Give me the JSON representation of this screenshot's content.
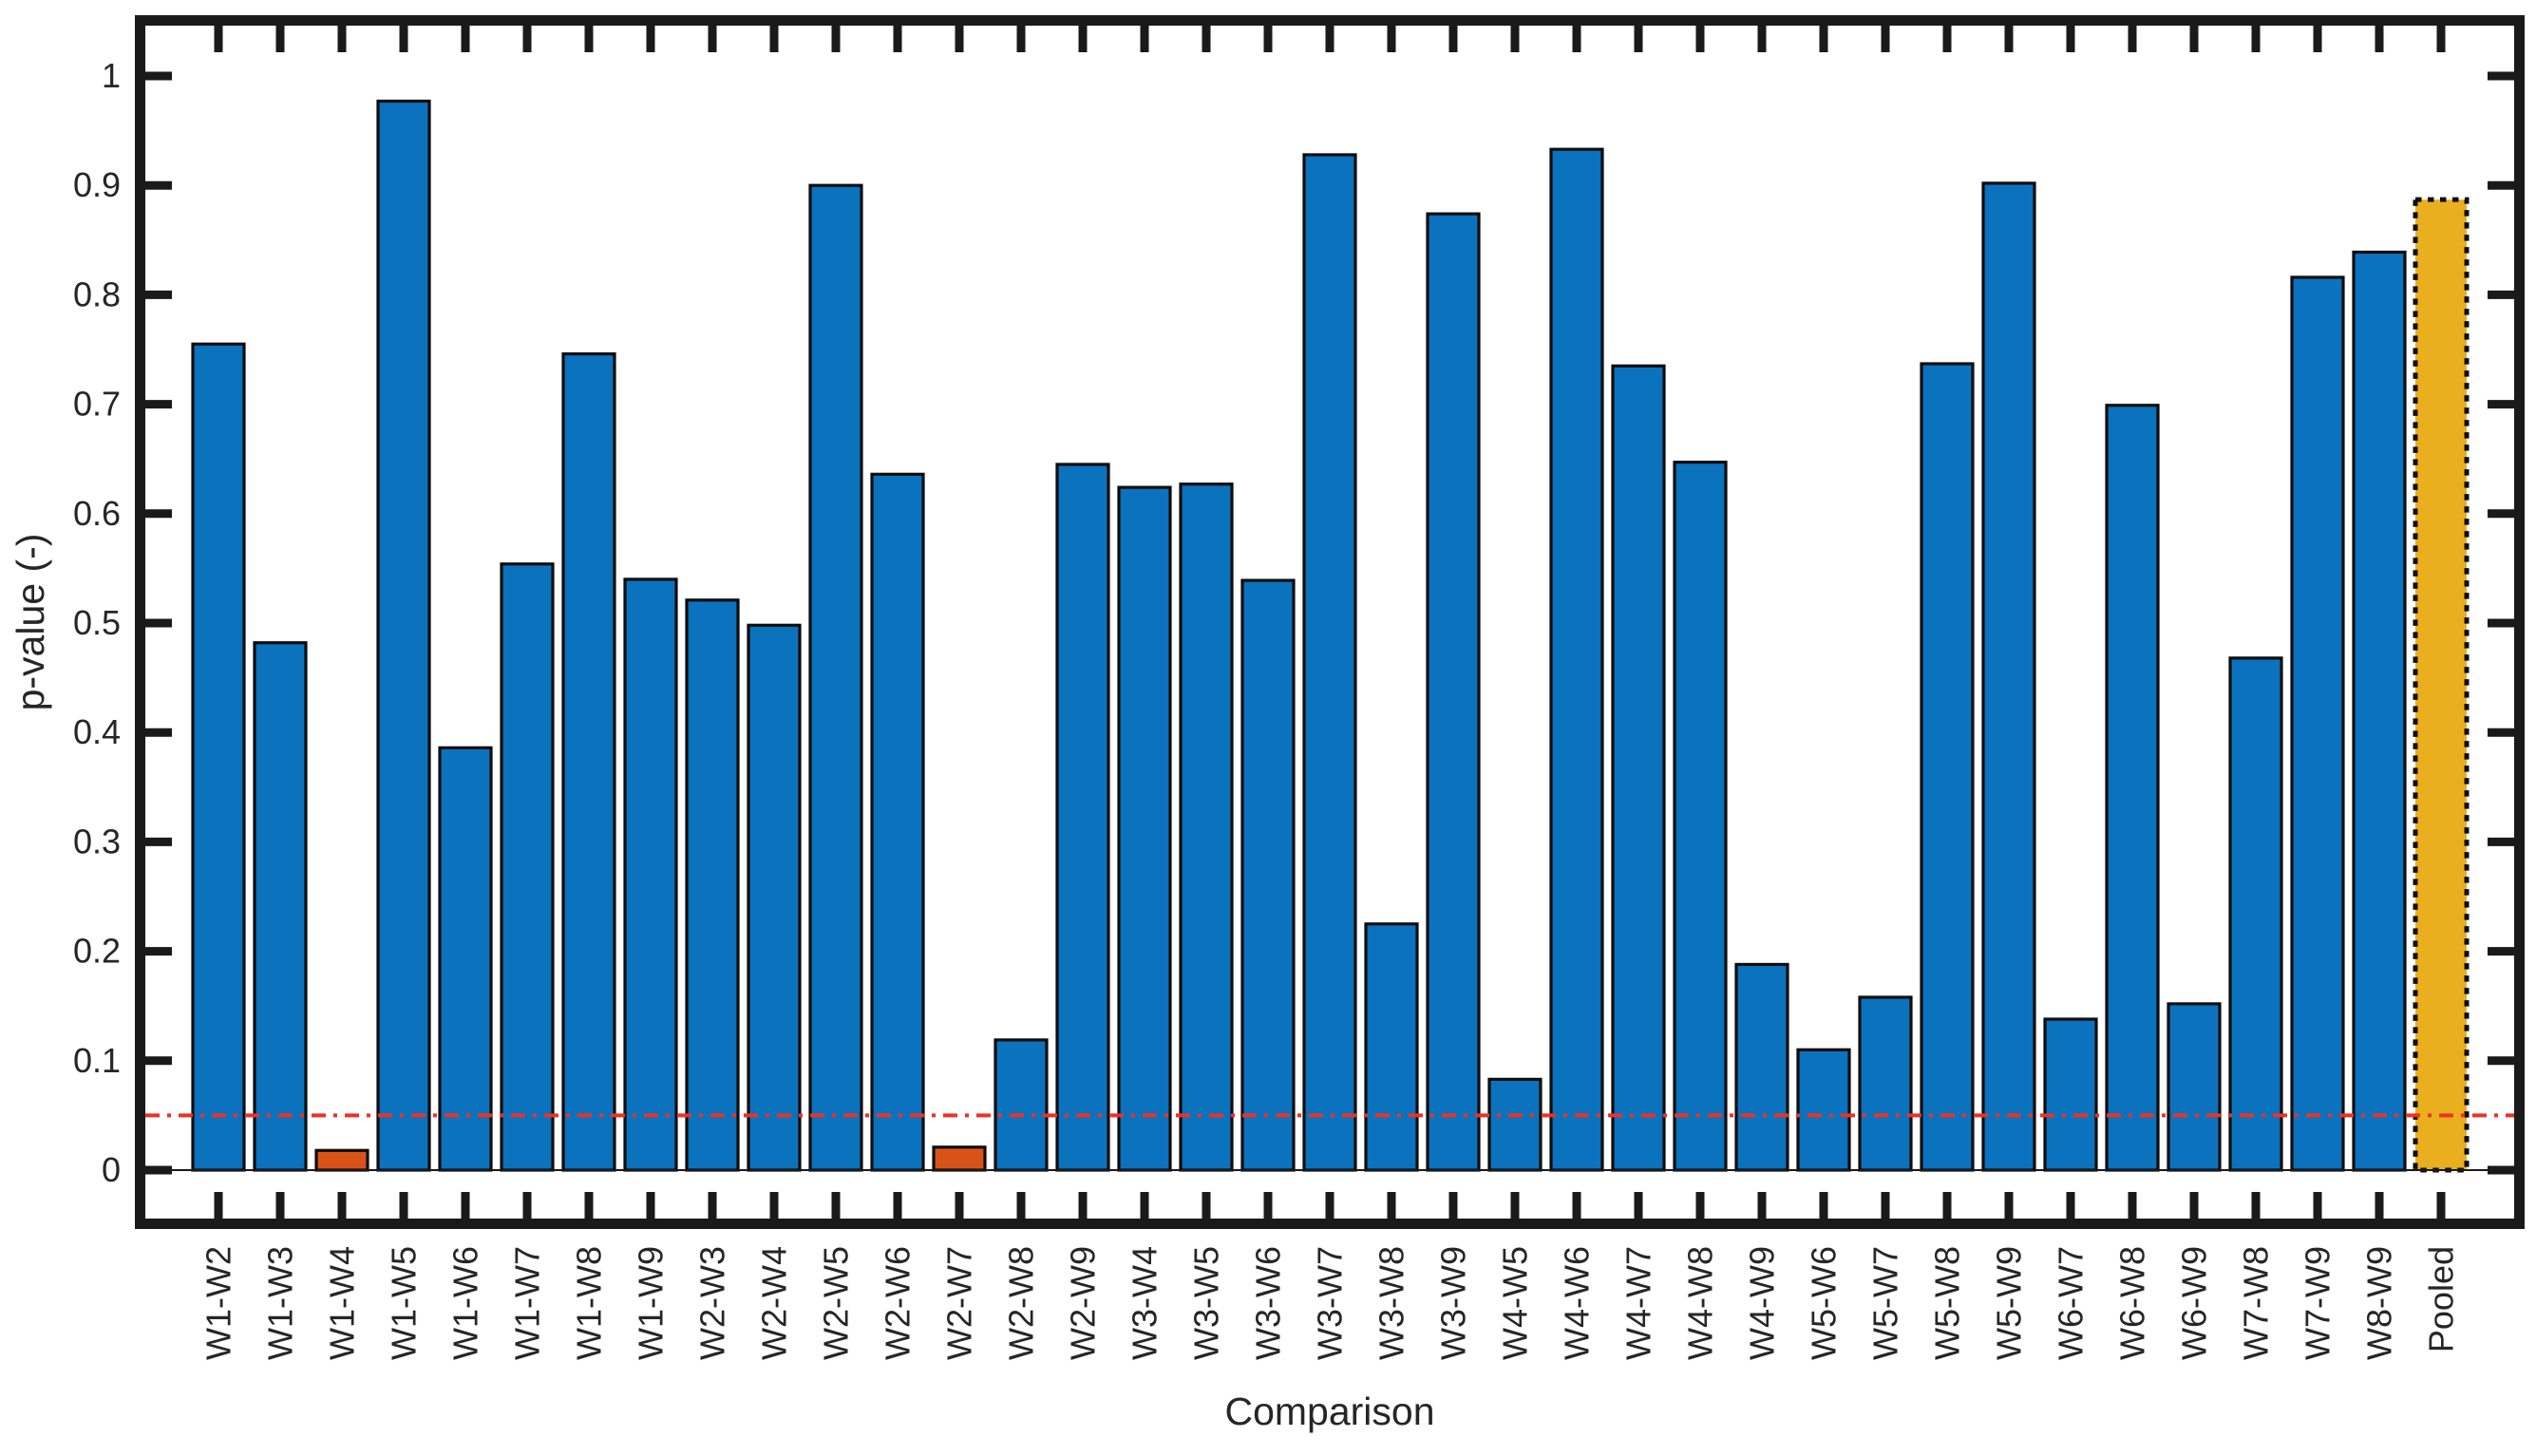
{
  "chart_data": {
    "type": "bar",
    "title": "",
    "xlabel": "Comparison",
    "ylabel": "p-value (-)",
    "ylim": [
      -0.05,
      1.05
    ],
    "yticks": [
      "0",
      "0.1",
      "0.2",
      "0.3",
      "0.4",
      "0.5",
      "0.6",
      "0.7",
      "0.8",
      "0.9",
      "1"
    ],
    "grid": false,
    "legend": null,
    "threshold_line": {
      "value": 0.05,
      "color": "#ee3124",
      "style": "dash-dot"
    },
    "colors": {
      "bar_default": "#0b72be",
      "bar_below_threshold": "#d95319",
      "bar_pooled": "#eaaf1f",
      "bar_edge": "#0d0d0d",
      "pooled_edge": "#0d0d0d",
      "axis": "#1a1a1a",
      "tick_label": "#262626",
      "background": "#ffffff"
    },
    "bars": [
      {
        "label": "W1-W2",
        "value": 0.755,
        "role": "default"
      },
      {
        "label": "W1-W3",
        "value": 0.482,
        "role": "default"
      },
      {
        "label": "W1-W4",
        "value": 0.018,
        "role": "below-threshold"
      },
      {
        "label": "W1-W5",
        "value": 0.977,
        "role": "default"
      },
      {
        "label": "W1-W6",
        "value": 0.386,
        "role": "default"
      },
      {
        "label": "W1-W7",
        "value": 0.554,
        "role": "default"
      },
      {
        "label": "W1-W8",
        "value": 0.746,
        "role": "default"
      },
      {
        "label": "W1-W9",
        "value": 0.54,
        "role": "default"
      },
      {
        "label": "W2-W3",
        "value": 0.521,
        "role": "default"
      },
      {
        "label": "W2-W4",
        "value": 0.498,
        "role": "default"
      },
      {
        "label": "W2-W5",
        "value": 0.9,
        "role": "default"
      },
      {
        "label": "W2-W6",
        "value": 0.636,
        "role": "default"
      },
      {
        "label": "W2-W7",
        "value": 0.021,
        "role": "below-threshold"
      },
      {
        "label": "W2-W8",
        "value": 0.119,
        "role": "default"
      },
      {
        "label": "W2-W9",
        "value": 0.645,
        "role": "default"
      },
      {
        "label": "W3-W4",
        "value": 0.624,
        "role": "default"
      },
      {
        "label": "W3-W5",
        "value": 0.627,
        "role": "default"
      },
      {
        "label": "W3-W6",
        "value": 0.539,
        "role": "default"
      },
      {
        "label": "W3-W7",
        "value": 0.928,
        "role": "default"
      },
      {
        "label": "W3-W8",
        "value": 0.225,
        "role": "default"
      },
      {
        "label": "W3-W9",
        "value": 0.874,
        "role": "default"
      },
      {
        "label": "W4-W5",
        "value": 0.083,
        "role": "default"
      },
      {
        "label": "W4-W6",
        "value": 0.933,
        "role": "default"
      },
      {
        "label": "W4-W7",
        "value": 0.735,
        "role": "default"
      },
      {
        "label": "W4-W8",
        "value": 0.647,
        "role": "default"
      },
      {
        "label": "W4-W9",
        "value": 0.188,
        "role": "default"
      },
      {
        "label": "W5-W6",
        "value": 0.11,
        "role": "default"
      },
      {
        "label": "W5-W7",
        "value": 0.158,
        "role": "default"
      },
      {
        "label": "W5-W8",
        "value": 0.737,
        "role": "default"
      },
      {
        "label": "W5-W9",
        "value": 0.902,
        "role": "default"
      },
      {
        "label": "W6-W7",
        "value": 0.138,
        "role": "default"
      },
      {
        "label": "W6-W8",
        "value": 0.699,
        "role": "default"
      },
      {
        "label": "W6-W9",
        "value": 0.152,
        "role": "default"
      },
      {
        "label": "W7-W8",
        "value": 0.468,
        "role": "default"
      },
      {
        "label": "W7-W9",
        "value": 0.816,
        "role": "default"
      },
      {
        "label": "W8-W9",
        "value": 0.839,
        "role": "default"
      },
      {
        "label": "Pooled",
        "value": 0.887,
        "role": "pooled"
      }
    ]
  }
}
